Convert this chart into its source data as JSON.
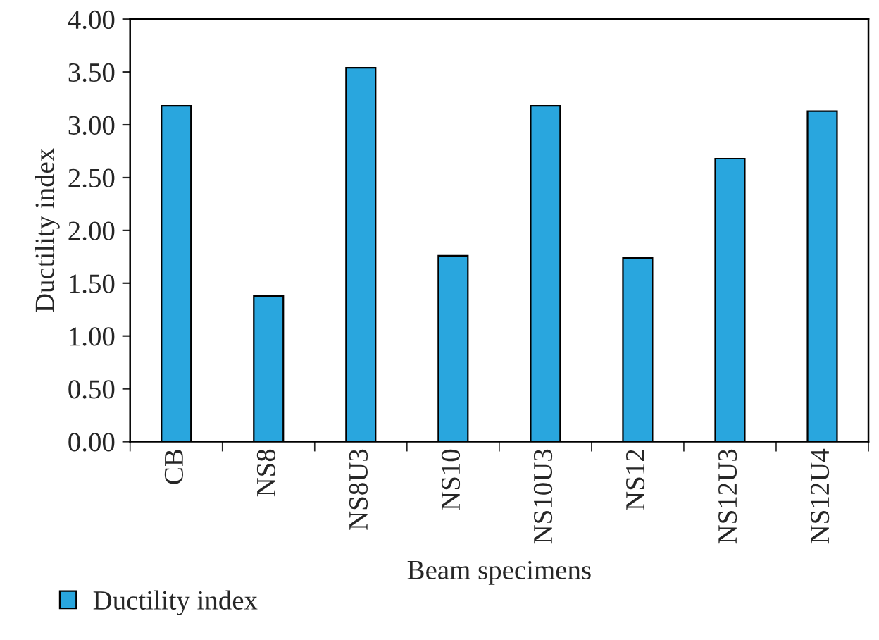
{
  "chart_data": {
    "type": "bar",
    "xlabel": "Beam specimens",
    "ylabel": "Ductility index",
    "categories": [
      "CB",
      "NS8",
      "NS8U3",
      "NS10",
      "NS10U3",
      "NS12",
      "NS12U3",
      "NS12U4"
    ],
    "series": [
      {
        "name": "Ductility index",
        "color": "#29a6de",
        "values": [
          3.18,
          1.38,
          3.54,
          1.76,
          3.18,
          1.74,
          2.68,
          3.13
        ]
      }
    ],
    "ylim": [
      0,
      4
    ],
    "yticks": [
      {
        "value": 0,
        "label": "0.00"
      },
      {
        "value": 0.5,
        "label": "0.50"
      },
      {
        "value": 1,
        "label": "1.00"
      },
      {
        "value": 1.5,
        "label": "1.50"
      },
      {
        "value": 2,
        "label": "2.00"
      },
      {
        "value": 2.5,
        "label": "2.50"
      },
      {
        "value": 3,
        "label": "3.00"
      },
      {
        "value": 3.5,
        "label": "3.50"
      },
      {
        "value": 4,
        "label": "4.00"
      }
    ],
    "grid": false,
    "legend": "bottom left"
  }
}
